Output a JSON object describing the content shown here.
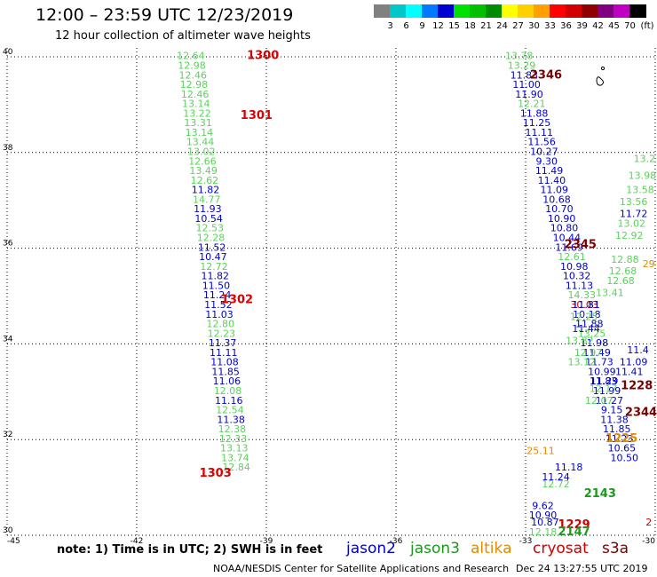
{
  "title": "12:00 – 23:59 UTC 12/23/2019",
  "subtitle": "12 hour collection of altimeter wave heights",
  "legend": {
    "unit": "(ft)",
    "items": [
      {
        "label": "",
        "color": "#808080"
      },
      {
        "label": "3",
        "color": "#00c8c8"
      },
      {
        "label": "6",
        "color": "#00ffff"
      },
      {
        "label": "9",
        "color": "#0078ff"
      },
      {
        "label": "12",
        "color": "#0000d0"
      },
      {
        "label": "15",
        "color": "#00e000"
      },
      {
        "label": "18",
        "color": "#00c000"
      },
      {
        "label": "21",
        "color": "#008c00"
      },
      {
        "label": "24",
        "color": "#ffff00"
      },
      {
        "label": "27",
        "color": "#ffd000"
      },
      {
        "label": "30",
        "color": "#ffa000"
      },
      {
        "label": "33",
        "color": "#ff0000"
      },
      {
        "label": "36",
        "color": "#d00000"
      },
      {
        "label": "39",
        "color": "#900000"
      },
      {
        "label": "42",
        "color": "#800080"
      },
      {
        "label": "45",
        "color": "#c000c0"
      },
      {
        "label": "70",
        "color": "#000000"
      }
    ]
  },
  "axes": {
    "lon_range": [
      -45,
      -30
    ],
    "lat_range": [
      30,
      40
    ],
    "lon_ticks": [
      "-45",
      "-42",
      "-39",
      "-36",
      "-33",
      "-30"
    ],
    "lat_ticks": [
      "40",
      "38",
      "36",
      "34",
      "32",
      "30"
    ]
  },
  "colors": {
    "jason2": "#0000c8",
    "jason3": "#1a9a1a",
    "altika": "#e08c00",
    "cryosat": "#cc0000",
    "s3a": "#7a0000",
    "light_green": "#5ad25a",
    "time": "#dd0000",
    "time_dark": "#7a0000"
  },
  "tracks": [
    {
      "name": "left-track",
      "lat_start": 39.95,
      "lat_step": -0.2,
      "lon_start": -40.75,
      "lon_step": 0.0245,
      "points": [
        {
          "v": "12.64",
          "c": "light_green"
        },
        {
          "v": "12.98",
          "c": "light_green"
        },
        {
          "v": "12.46",
          "c": "light_green"
        },
        {
          "v": "12.98",
          "c": "light_green"
        },
        {
          "v": "12.46",
          "c": "light_green"
        },
        {
          "v": "13.14",
          "c": "light_green"
        },
        {
          "v": "13.22",
          "c": "light_green"
        },
        {
          "v": "13.31",
          "c": "light_green"
        },
        {
          "v": "13.14",
          "c": "light_green"
        },
        {
          "v": "13.44",
          "c": "light_green"
        },
        {
          "v": "13.02",
          "c": "light_green"
        },
        {
          "v": "12.66",
          "c": "light_green"
        },
        {
          "v": "13.49",
          "c": "light_green"
        },
        {
          "v": "12.62",
          "c": "light_green"
        },
        {
          "v": "11.82",
          "c": "jason2"
        },
        {
          "v": "14.77",
          "c": "light_green"
        },
        {
          "v": "11.93",
          "c": "jason2"
        },
        {
          "v": "10.54",
          "c": "jason2"
        },
        {
          "v": "12.53",
          "c": "light_green"
        },
        {
          "v": "12.28",
          "c": "light_green"
        },
        {
          "v": "11.52",
          "c": "jason2"
        },
        {
          "v": "10.47",
          "c": "jason2"
        },
        {
          "v": "12.72",
          "c": "light_green"
        },
        {
          "v": "11.82",
          "c": "jason2"
        },
        {
          "v": "11.50",
          "c": "jason2"
        },
        {
          "v": "11.24",
          "c": "jason2"
        },
        {
          "v": "11.52",
          "c": "jason2"
        },
        {
          "v": "11.03",
          "c": "jason2"
        },
        {
          "v": "12.80",
          "c": "light_green"
        },
        {
          "v": "12.23",
          "c": "light_green"
        },
        {
          "v": "11.37",
          "c": "jason2"
        },
        {
          "v": "11.11",
          "c": "jason2"
        },
        {
          "v": "11.08",
          "c": "jason2"
        },
        {
          "v": "11.85",
          "c": "jason2"
        },
        {
          "v": "11.06",
          "c": "jason2"
        },
        {
          "v": "12.08",
          "c": "light_green"
        },
        {
          "v": "11.16",
          "c": "jason2"
        },
        {
          "v": "12.54",
          "c": "light_green"
        },
        {
          "v": "11.38",
          "c": "jason2"
        },
        {
          "v": "12.38",
          "c": "light_green"
        },
        {
          "v": "12.33",
          "c": "light_green"
        },
        {
          "v": "13.13",
          "c": "light_green"
        },
        {
          "v": "13.74",
          "c": "light_green"
        },
        {
          "v": "12.84",
          "c": "light_green"
        }
      ]
    },
    {
      "name": "right-track",
      "lat_start": 39.95,
      "lat_step": -0.2,
      "lon_start": -33.15,
      "lon_step": 0.058,
      "points": [
        {
          "v": "13.78",
          "c": "light_green"
        },
        {
          "v": "13.29",
          "c": "light_green"
        },
        {
          "v": "11.83",
          "c": "jason2"
        },
        {
          "v": "11.00",
          "c": "jason2"
        },
        {
          "v": "11.90",
          "c": "jason2"
        },
        {
          "v": "12.21",
          "c": "light_green"
        },
        {
          "v": "11.88",
          "c": "jason2"
        },
        {
          "v": "11.25",
          "c": "jason2"
        },
        {
          "v": "11.11",
          "c": "jason2"
        },
        {
          "v": "11.56",
          "c": "jason2"
        },
        {
          "v": "10.27",
          "c": "jason2"
        },
        {
          "v": "9.30",
          "c": "jason2"
        },
        {
          "v": "11.49",
          "c": "jason2"
        },
        {
          "v": "11.40",
          "c": "jason2"
        },
        {
          "v": "11.09",
          "c": "jason2"
        },
        {
          "v": "10.68",
          "c": "jason2"
        },
        {
          "v": "10.70",
          "c": "jason2"
        },
        {
          "v": "10.90",
          "c": "jason2"
        },
        {
          "v": "10.80",
          "c": "jason2"
        },
        {
          "v": "10.44",
          "c": "jason2"
        },
        {
          "v": "11.69",
          "c": "jason2"
        },
        {
          "v": "12.61",
          "c": "light_green"
        },
        {
          "v": "10.98",
          "c": "jason2"
        },
        {
          "v": "10.32",
          "c": "jason2"
        },
        {
          "v": "11.13",
          "c": "jason2"
        },
        {
          "v": "14.33",
          "c": "light_green"
        },
        {
          "v": "30.03",
          "c": "cryosat"
        },
        {
          "v": "10.18",
          "c": "jason2"
        },
        {
          "v": "11.88",
          "c": "jason2"
        },
        {
          "v": "13.25",
          "c": "light_green"
        },
        {
          "v": "11.98",
          "c": "jason2"
        },
        {
          "v": "11.49",
          "c": "jason2"
        },
        {
          "v": "11.73",
          "c": "jason2"
        },
        {
          "v": "10.99",
          "c": "jason2"
        },
        {
          "v": "11.29",
          "c": "jason2"
        },
        {
          "v": "11.99",
          "c": "jason2"
        },
        {
          "v": "11.27",
          "c": "jason2"
        },
        {
          "v": "9.15",
          "c": "jason2"
        },
        {
          "v": "11.38",
          "c": "jason2"
        },
        {
          "v": "11.85",
          "c": "jason2"
        },
        {
          "v": "11.23",
          "c": "jason2"
        },
        {
          "v": "10.65",
          "c": "jason2"
        },
        {
          "v": "10.50",
          "c": "jason2"
        }
      ]
    }
  ],
  "extra_labels": [
    {
      "v": "11.81",
      "c": "jason2",
      "lon": -31.6,
      "lat": 34.75
    },
    {
      "v": "12.25",
      "c": "light_green",
      "lon": -31.65,
      "lat": 34.5
    },
    {
      "v": "11.44",
      "c": "jason2",
      "lon": -31.6,
      "lat": 34.25
    },
    {
      "v": "13.82",
      "c": "light_green",
      "lon": -31.75,
      "lat": 34.0
    },
    {
      "v": "12.97",
      "c": "light_green",
      "lon": -31.55,
      "lat": 33.75
    },
    {
      "v": "13.12",
      "c": "light_green",
      "lon": -31.7,
      "lat": 33.55
    },
    {
      "v": "11.41",
      "c": "jason2",
      "lon": -30.6,
      "lat": 33.35
    },
    {
      "v": "11.09",
      "c": "jason2",
      "lon": -30.5,
      "lat": 33.55
    },
    {
      "v": "11.4",
      "c": "jason2",
      "lon": -30.4,
      "lat": 33.8
    },
    {
      "v": "12.17",
      "c": "light_green",
      "lon": -31.2,
      "lat": 33.0
    },
    {
      "v": "12.07",
      "c": "light_green",
      "lon": -31.3,
      "lat": 32.75
    },
    {
      "v": "11.83",
      "c": "jason2",
      "lon": -31.2,
      "lat": 33.15
    },
    {
      "v": "11.18",
      "c": "jason2",
      "lon": -32.0,
      "lat": 31.35
    },
    {
      "v": "11.24",
      "c": "jason2",
      "lon": -32.3,
      "lat": 31.15
    },
    {
      "v": "12.72",
      "c": "light_green",
      "lon": -32.3,
      "lat": 31.0
    },
    {
      "v": "9.62",
      "c": "jason2",
      "lon": -32.6,
      "lat": 30.55
    },
    {
      "v": "10.90",
      "c": "jason2",
      "lon": -32.6,
      "lat": 30.35
    },
    {
      "v": "12.18",
      "c": "light_green",
      "lon": -32.6,
      "lat": 30.0
    },
    {
      "v": "10.87",
      "c": "jason2",
      "lon": -32.55,
      "lat": 30.2
    },
    {
      "v": "13.56",
      "c": "light_green",
      "lon": -30.5,
      "lat": 36.9
    },
    {
      "v": "11.72",
      "c": "jason2",
      "lon": -30.5,
      "lat": 36.65
    },
    {
      "v": "13.58",
      "c": "light_green",
      "lon": -30.35,
      "lat": 37.15
    },
    {
      "v": "13.98",
      "c": "light_green",
      "lon": -30.3,
      "lat": 37.45
    },
    {
      "v": "13.2",
      "c": "light_green",
      "lon": -30.25,
      "lat": 37.8
    },
    {
      "v": "12.68",
      "c": "light_green",
      "lon": -30.75,
      "lat": 35.45
    },
    {
      "v": "12.88",
      "c": "light_green",
      "lon": -30.7,
      "lat": 35.7
    },
    {
      "v": "13.41",
      "c": "light_green",
      "lon": -31.05,
      "lat": 35.0
    },
    {
      "v": "12.68",
      "c": "light_green",
      "lon": -30.8,
      "lat": 35.25
    },
    {
      "v": "12.92",
      "c": "light_green",
      "lon": -30.6,
      "lat": 36.2
    },
    {
      "v": "13.02",
      "c": "light_green",
      "lon": -30.55,
      "lat": 36.45
    },
    {
      "v": "25.11",
      "c": "altika",
      "lon": -32.65,
      "lat": 31.7
    },
    {
      "v": "29",
      "c": "altika",
      "lon": -30.15,
      "lat": 35.6
    },
    {
      "v": "2",
      "c": "cryosat",
      "lon": -30.15,
      "lat": 30.2
    }
  ],
  "times": [
    {
      "v": "1300",
      "c": "time",
      "lon": -39.45,
      "lat": 39.95
    },
    {
      "v": "1301",
      "c": "time",
      "lon": -39.6,
      "lat": 38.7
    },
    {
      "v": "1302",
      "c": "time",
      "lon": -40.05,
      "lat": 34.85
    },
    {
      "v": "1303",
      "c": "time",
      "lon": -40.55,
      "lat": 31.22
    },
    {
      "v": "2346",
      "c": "time_dark",
      "lon": -32.9,
      "lat": 39.55
    },
    {
      "v": "2345",
      "c": "time_dark",
      "lon": -32.1,
      "lat": 36.0
    },
    {
      "v": "1228",
      "c": "time_dark",
      "lon": -30.8,
      "lat": 33.05
    },
    {
      "v": "2344",
      "c": "time_dark",
      "lon": -30.7,
      "lat": 32.5
    },
    {
      "v": "1225",
      "c": "altika",
      "lon": -31.15,
      "lat": 31.95
    },
    {
      "v": "2143",
      "c": "jason3",
      "lon": -31.65,
      "lat": 30.8
    },
    {
      "v": "1229",
      "c": "cryosat",
      "lon": -32.25,
      "lat": 30.15
    },
    {
      "v": "2147",
      "c": "jason3",
      "lon": -32.25,
      "lat": 30.0
    }
  ],
  "note": "note:  1) Time is in UTC;  2) SWH is in feet",
  "satellites": [
    {
      "name": "jason2",
      "c": "jason2"
    },
    {
      "name": "jason3",
      "c": "jason3"
    },
    {
      "name": "altika",
      "c": "altika"
    },
    {
      "name": "cryosat",
      "c": "cryosat"
    },
    {
      "name": "s3a",
      "c": "s3a"
    }
  ],
  "footer": "NOAA/NESDIS Center for Satellite Applications and Research",
  "timestamp": "Dec 24 13:27:55 UTC 2019"
}
